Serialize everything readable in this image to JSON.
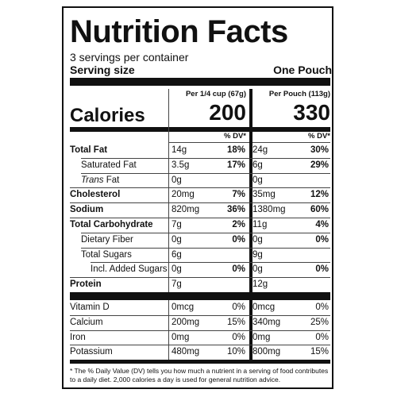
{
  "header": {
    "title": "Nutrition Facts",
    "servings": "3 servings per container",
    "serving_size_label": "Serving size",
    "serving_size_value": "One Pouch"
  },
  "calories_label": "Calories",
  "columns": [
    {
      "heading": "Per 1/4 cup (67g)",
      "calories": "200"
    },
    {
      "heading": "Per Pouch (113g)",
      "calories": "330"
    }
  ],
  "dv_header": "% DV*",
  "nutrients": [
    {
      "name": "Total Fat",
      "cells": [
        [
          "14g",
          "18%"
        ],
        [
          "24g",
          "30%"
        ]
      ]
    },
    {
      "name": "Saturated Fat",
      "cells": [
        [
          "3.5g",
          "17%"
        ],
        [
          "6g",
          "29%"
        ]
      ]
    },
    {
      "name_italic": "Trans",
      "name": "Fat",
      "cells": [
        [
          "0g",
          null
        ],
        [
          "0g",
          null
        ]
      ]
    },
    {
      "name": "Cholesterol",
      "cells": [
        [
          "20mg",
          "7%"
        ],
        [
          "35mg",
          "12%"
        ]
      ]
    },
    {
      "name": "Sodium",
      "cells": [
        [
          "820mg",
          "36%"
        ],
        [
          "1380mg",
          "60%"
        ]
      ]
    },
    {
      "name": "Total Carbohydrate",
      "cells": [
        [
          "7g",
          "2%"
        ],
        [
          "11g",
          "4%"
        ]
      ]
    },
    {
      "name": "Dietary Fiber",
      "cells": [
        [
          "0g",
          "0%"
        ],
        [
          "0g",
          "0%"
        ]
      ]
    },
    {
      "name": "Total Sugars",
      "cells": [
        [
          "6g",
          null
        ],
        [
          "9g",
          null
        ]
      ]
    },
    {
      "name": "Incl. Added Sugars",
      "cells": [
        [
          "0g",
          "0%"
        ],
        [
          "0g",
          "0%"
        ]
      ]
    },
    {
      "name": "Protein",
      "cells": [
        [
          "7g",
          null
        ],
        [
          "12g",
          null
        ]
      ]
    }
  ],
  "vitamins": [
    {
      "name": "Vitamin D",
      "cells": [
        [
          "0mcg",
          "0%"
        ],
        [
          "0mcg",
          "0%"
        ]
      ]
    },
    {
      "name": "Calcium",
      "cells": [
        [
          "200mg",
          "15%"
        ],
        [
          "340mg",
          "25%"
        ]
      ]
    },
    {
      "name": "Iron",
      "cells": [
        [
          "0mg",
          "0%"
        ],
        [
          "0mg",
          "0%"
        ]
      ]
    },
    {
      "name": "Potassium",
      "cells": [
        [
          "480mg",
          "10%"
        ],
        [
          "800mg",
          "15%"
        ]
      ]
    }
  ],
  "footnote": "* The % Daily Value (DV) tells you how much a nutrient in a serving of food contributes to a daily diet. 2,000 calories a day is used for general nutrition advice."
}
